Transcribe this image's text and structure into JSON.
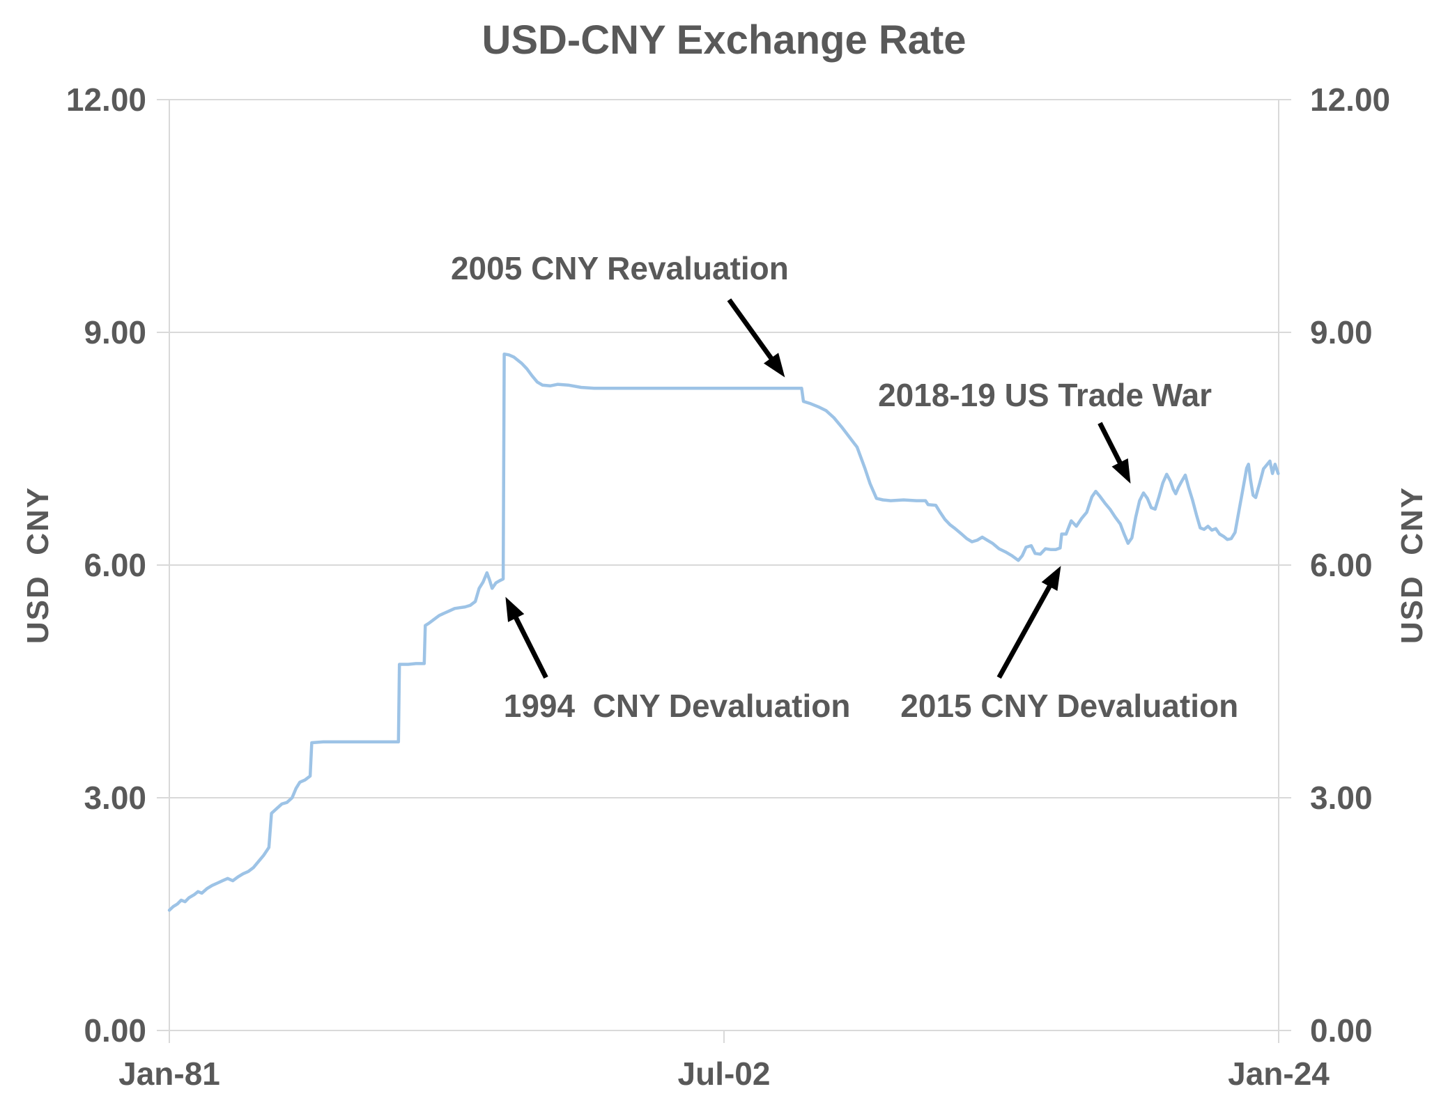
{
  "chart_data": {
    "type": "line",
    "title": "USD-CNY Exchange Rate",
    "ylabel_left": "USD  CNY",
    "ylabel_right": "USD  CNY",
    "ylim": [
      0,
      12
    ],
    "y_ticks": [
      0,
      3,
      6,
      9,
      12
    ],
    "y_tick_labels": [
      "0.00",
      "3.00",
      "6.00",
      "9.00",
      "12.00"
    ],
    "xlim_years": [
      1981.04,
      2024.04
    ],
    "x_ticks": [
      {
        "label": "Jan-81",
        "year": 1981.04
      },
      {
        "label": "Jul-02",
        "year": 2002.54
      },
      {
        "label": "Jan-24",
        "year": 2024.04
      }
    ],
    "grid": true,
    "legend": "none",
    "colors": {
      "line": "#9DC3E6",
      "grid": "#D9D9D9",
      "text": "#595959",
      "arrow": "#000000"
    },
    "series": [
      {
        "name": "USD-CNY exchange rate",
        "points": [
          [
            1981.04,
            1.55
          ],
          [
            1981.2,
            1.6
          ],
          [
            1981.35,
            1.63
          ],
          [
            1981.5,
            1.68
          ],
          [
            1981.65,
            1.66
          ],
          [
            1981.8,
            1.71
          ],
          [
            1982.0,
            1.75
          ],
          [
            1982.15,
            1.79
          ],
          [
            1982.3,
            1.77
          ],
          [
            1982.5,
            1.83
          ],
          [
            1982.7,
            1.87
          ],
          [
            1982.9,
            1.9
          ],
          [
            1983.1,
            1.93
          ],
          [
            1983.3,
            1.96
          ],
          [
            1983.5,
            1.93
          ],
          [
            1983.7,
            1.98
          ],
          [
            1983.9,
            2.02
          ],
          [
            1984.1,
            2.05
          ],
          [
            1984.3,
            2.1
          ],
          [
            1984.5,
            2.18
          ],
          [
            1984.7,
            2.26
          ],
          [
            1984.9,
            2.36
          ],
          [
            1985.0,
            2.8
          ],
          [
            1985.2,
            2.86
          ],
          [
            1985.4,
            2.92
          ],
          [
            1985.6,
            2.94
          ],
          [
            1985.8,
            3.0
          ],
          [
            1985.95,
            3.12
          ],
          [
            1986.1,
            3.2
          ],
          [
            1986.3,
            3.23
          ],
          [
            1986.5,
            3.28
          ],
          [
            1986.56,
            3.71
          ],
          [
            1987.0,
            3.72
          ],
          [
            1987.5,
            3.72
          ],
          [
            1988.0,
            3.72
          ],
          [
            1988.5,
            3.72
          ],
          [
            1989.0,
            3.72
          ],
          [
            1989.5,
            3.72
          ],
          [
            1989.92,
            3.72
          ],
          [
            1989.96,
            4.72
          ],
          [
            1990.3,
            4.72
          ],
          [
            1990.6,
            4.73
          ],
          [
            1990.92,
            4.73
          ],
          [
            1990.96,
            5.22
          ],
          [
            1991.1,
            5.25
          ],
          [
            1991.3,
            5.3
          ],
          [
            1991.5,
            5.35
          ],
          [
            1991.7,
            5.38
          ],
          [
            1991.9,
            5.41
          ],
          [
            1992.1,
            5.44
          ],
          [
            1992.3,
            5.45
          ],
          [
            1992.5,
            5.46
          ],
          [
            1992.7,
            5.48
          ],
          [
            1992.9,
            5.53
          ],
          [
            1993.05,
            5.7
          ],
          [
            1993.2,
            5.78
          ],
          [
            1993.35,
            5.9
          ],
          [
            1993.45,
            5.81
          ],
          [
            1993.55,
            5.7
          ],
          [
            1993.7,
            5.77
          ],
          [
            1993.85,
            5.8
          ],
          [
            1993.98,
            5.82
          ],
          [
            1994.02,
            8.72
          ],
          [
            1994.2,
            8.71
          ],
          [
            1994.4,
            8.68
          ],
          [
            1994.7,
            8.6
          ],
          [
            1994.9,
            8.53
          ],
          [
            1995.1,
            8.44
          ],
          [
            1995.3,
            8.36
          ],
          [
            1995.5,
            8.32
          ],
          [
            1995.8,
            8.31
          ],
          [
            1996.1,
            8.33
          ],
          [
            1996.5,
            8.32
          ],
          [
            1997.0,
            8.29
          ],
          [
            1997.5,
            8.28
          ],
          [
            1998.5,
            8.28
          ],
          [
            1999.5,
            8.28
          ],
          [
            2000.5,
            8.28
          ],
          [
            2001.5,
            8.28
          ],
          [
            2002.5,
            8.28
          ],
          [
            2003.5,
            8.28
          ],
          [
            2004.5,
            8.28
          ],
          [
            2005.3,
            8.28
          ],
          [
            2005.55,
            8.28
          ],
          [
            2005.62,
            8.11
          ],
          [
            2005.9,
            8.08
          ],
          [
            2006.2,
            8.04
          ],
          [
            2006.5,
            7.99
          ],
          [
            2006.8,
            7.9
          ],
          [
            2007.1,
            7.78
          ],
          [
            2007.4,
            7.65
          ],
          [
            2007.7,
            7.52
          ],
          [
            2008.0,
            7.25
          ],
          [
            2008.2,
            7.05
          ],
          [
            2008.45,
            6.86
          ],
          [
            2008.7,
            6.84
          ],
          [
            2009.0,
            6.83
          ],
          [
            2009.5,
            6.84
          ],
          [
            2010.0,
            6.83
          ],
          [
            2010.35,
            6.83
          ],
          [
            2010.45,
            6.78
          ],
          [
            2010.75,
            6.77
          ],
          [
            2010.9,
            6.69
          ],
          [
            2011.1,
            6.59
          ],
          [
            2011.3,
            6.52
          ],
          [
            2011.5,
            6.47
          ],
          [
            2011.75,
            6.4
          ],
          [
            2011.95,
            6.34
          ],
          [
            2012.15,
            6.3
          ],
          [
            2012.35,
            6.32
          ],
          [
            2012.55,
            6.36
          ],
          [
            2012.75,
            6.32
          ],
          [
            2012.95,
            6.28
          ],
          [
            2013.2,
            6.21
          ],
          [
            2013.45,
            6.17
          ],
          [
            2013.7,
            6.12
          ],
          [
            2013.95,
            6.06
          ],
          [
            2014.1,
            6.12
          ],
          [
            2014.25,
            6.23
          ],
          [
            2014.45,
            6.25
          ],
          [
            2014.6,
            6.15
          ],
          [
            2014.8,
            6.14
          ],
          [
            2015.0,
            6.21
          ],
          [
            2015.2,
            6.2
          ],
          [
            2015.4,
            6.2
          ],
          [
            2015.57,
            6.22
          ],
          [
            2015.63,
            6.4
          ],
          [
            2015.8,
            6.4
          ],
          [
            2016.0,
            6.57
          ],
          [
            2016.2,
            6.5
          ],
          [
            2016.4,
            6.6
          ],
          [
            2016.6,
            6.68
          ],
          [
            2016.8,
            6.88
          ],
          [
            2016.95,
            6.95
          ],
          [
            2017.1,
            6.89
          ],
          [
            2017.3,
            6.8
          ],
          [
            2017.5,
            6.72
          ],
          [
            2017.7,
            6.62
          ],
          [
            2017.9,
            6.53
          ],
          [
            2018.05,
            6.4
          ],
          [
            2018.2,
            6.28
          ],
          [
            2018.35,
            6.35
          ],
          [
            2018.5,
            6.62
          ],
          [
            2018.65,
            6.83
          ],
          [
            2018.8,
            6.93
          ],
          [
            2018.95,
            6.86
          ],
          [
            2019.1,
            6.74
          ],
          [
            2019.25,
            6.72
          ],
          [
            2019.4,
            6.88
          ],
          [
            2019.55,
            7.06
          ],
          [
            2019.7,
            7.17
          ],
          [
            2019.85,
            7.08
          ],
          [
            2019.95,
            6.98
          ],
          [
            2020.05,
            6.92
          ],
          [
            2020.15,
            7.0
          ],
          [
            2020.3,
            7.09
          ],
          [
            2020.42,
            7.16
          ],
          [
            2020.55,
            7.0
          ],
          [
            2020.7,
            6.84
          ],
          [
            2020.85,
            6.65
          ],
          [
            2021.0,
            6.48
          ],
          [
            2021.15,
            6.46
          ],
          [
            2021.3,
            6.5
          ],
          [
            2021.45,
            6.45
          ],
          [
            2021.6,
            6.47
          ],
          [
            2021.75,
            6.4
          ],
          [
            2021.9,
            6.37
          ],
          [
            2022.05,
            6.33
          ],
          [
            2022.2,
            6.34
          ],
          [
            2022.35,
            6.42
          ],
          [
            2022.5,
            6.7
          ],
          [
            2022.65,
            6.97
          ],
          [
            2022.8,
            7.25
          ],
          [
            2022.87,
            7.3
          ],
          [
            2022.95,
            7.1
          ],
          [
            2023.05,
            6.9
          ],
          [
            2023.15,
            6.87
          ],
          [
            2023.3,
            7.05
          ],
          [
            2023.45,
            7.24
          ],
          [
            2023.6,
            7.3
          ],
          [
            2023.7,
            7.34
          ],
          [
            2023.8,
            7.18
          ],
          [
            2023.9,
            7.3
          ],
          [
            2024.02,
            7.18
          ]
        ]
      }
    ],
    "annotations": [
      {
        "label": "2005 CNY Revaluation",
        "text_at": [
          1998.5,
          9.83
        ],
        "arrow_from": [
          2002.74,
          9.42
        ],
        "arrow_to": [
          2004.9,
          8.42
        ]
      },
      {
        "label": "1994  CNY Devaluation",
        "text_at": [
          2000.72,
          4.19
        ],
        "arrow_from": [
          1995.64,
          4.55
        ],
        "arrow_to": [
          1994.07,
          5.59
        ]
      },
      {
        "label": "2015 CNY Devaluation",
        "text_at": [
          2015.93,
          4.19
        ],
        "arrow_from": [
          2013.2,
          4.55
        ],
        "arrow_to": [
          2015.6,
          5.99
        ]
      },
      {
        "label": "2018-19 US Trade War",
        "text_at": [
          2014.98,
          8.19
        ],
        "arrow_from": [
          2017.11,
          7.83
        ],
        "arrow_to": [
          2018.3,
          7.05
        ]
      }
    ]
  }
}
